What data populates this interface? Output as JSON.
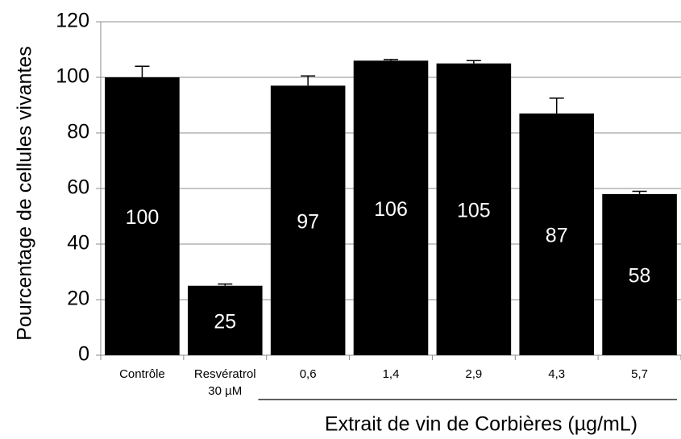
{
  "chart_data": {
    "type": "bar",
    "ylabel": "Pourcentage de cellules vivantes",
    "categories": [
      "Contrôle",
      "Resvératrol\n30 µM",
      "0,6",
      "1,4",
      "2,9",
      "4,3",
      "5,7"
    ],
    "values": [
      100,
      25,
      97,
      106,
      105,
      87,
      58
    ],
    "errors": [
      4,
      0.6,
      3.5,
      0.4,
      1,
      5.5,
      1
    ],
    "color": "#000000",
    "value_label_color": "#ffffff",
    "group_label": "Extrait de vin de Corbières (µg/mL)",
    "ylim": [
      0,
      120
    ],
    "yticks": [
      0,
      20,
      40,
      60,
      80,
      100,
      120
    ],
    "grid": true
  }
}
